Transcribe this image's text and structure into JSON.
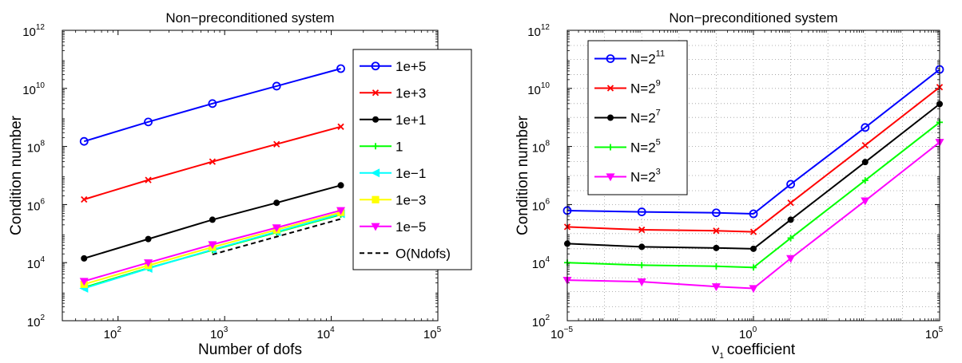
{
  "chart_data": [
    {
      "type": "line",
      "title": "Non−preconditioned system",
      "xlabel": "Number of dofs",
      "ylabel": "Condition number",
      "xscale": "log",
      "yscale": "log",
      "xlim": [
        30,
        100000
      ],
      "ylim": [
        100,
        1000000000000
      ],
      "x_ticks": [
        {
          "base": "10",
          "exp": "2"
        },
        {
          "base": "10",
          "exp": "3"
        },
        {
          "base": "10",
          "exp": "4"
        },
        {
          "base": "10",
          "exp": "5"
        }
      ],
      "y_ticks": [
        {
          "base": "10",
          "exp": "2"
        },
        {
          "base": "10",
          "exp": "4"
        },
        {
          "base": "10",
          "exp": "6"
        },
        {
          "base": "10",
          "exp": "8"
        },
        {
          "base": "10",
          "exp": "10"
        },
        {
          "base": "10",
          "exp": "12"
        }
      ],
      "grid": false,
      "legend_position": "right",
      "series": [
        {
          "name": "1e+5",
          "color": "#0000ff",
          "marker": "circle",
          "x": [
            48,
            192,
            768,
            3072,
            12288
          ],
          "y": [
            150000000,
            700000000,
            3000000000,
            12000000000,
            48000000000
          ]
        },
        {
          "name": "1e+3",
          "color": "#ff0000",
          "marker": "x",
          "x": [
            48,
            192,
            768,
            3072,
            12288
          ],
          "y": [
            1500000,
            7000000,
            30000000,
            120000000,
            480000000
          ]
        },
        {
          "name": "1e+1",
          "color": "#000000",
          "marker": "dot",
          "x": [
            48,
            192,
            768,
            3072,
            12288
          ],
          "y": [
            14000,
            65000,
            300000,
            1150000,
            4600000
          ]
        },
        {
          "name": "1",
          "color": "#00ff00",
          "marker": "plus",
          "x": [
            48,
            192,
            768,
            3072,
            12288
          ],
          "y": [
            1400,
            6500,
            27000,
            110000,
            450000
          ]
        },
        {
          "name": "1e−1",
          "color": "#00ffff",
          "marker": "triangle-left",
          "x": [
            48,
            192,
            768,
            3072,
            12288
          ],
          "y": [
            1300,
            6300,
            28000,
            115000,
            480000
          ]
        },
        {
          "name": "1e−3",
          "color": "#ffff00",
          "marker": "square",
          "x": [
            48,
            192,
            768,
            3072,
            12288
          ],
          "y": [
            1800,
            8000,
            34000,
            135000,
            540000
          ]
        },
        {
          "name": "1e−5",
          "color": "#ff00ff",
          "marker": "triangle-down",
          "x": [
            48,
            192,
            768,
            3072,
            12288
          ],
          "y": [
            2300,
            10000,
            42000,
            160000,
            630000
          ]
        },
        {
          "name": "O(Ndofs)",
          "color": "#000000",
          "marker": "none",
          "dash": true,
          "x": [
            768,
            12288
          ],
          "y": [
            19000,
            320000
          ]
        }
      ]
    },
    {
      "type": "line",
      "title": "Non−preconditioned system",
      "xlabel": "coefficient",
      "xlabel_symbol": "ν",
      "xlabel_sub": "1",
      "ylabel": "Condition number",
      "xscale": "log",
      "yscale": "log",
      "xlim": [
        1e-05,
        100000
      ],
      "ylim": [
        100,
        1000000000000
      ],
      "x_ticks": [
        {
          "base": "10",
          "exp": "−5"
        },
        {
          "base": "10",
          "exp": "0"
        },
        {
          "base": "10",
          "exp": "5"
        }
      ],
      "y_ticks": [
        {
          "base": "10",
          "exp": "2"
        },
        {
          "base": "10",
          "exp": "4"
        },
        {
          "base": "10",
          "exp": "6"
        },
        {
          "base": "10",
          "exp": "8"
        },
        {
          "base": "10",
          "exp": "10"
        },
        {
          "base": "10",
          "exp": "12"
        }
      ],
      "grid": true,
      "legend_position": "top-left",
      "series": [
        {
          "name": "N=2",
          "name_sup": "11",
          "color": "#0000ff",
          "marker": "circle",
          "x": [
            1e-05,
            0.001,
            0.1,
            1,
            10,
            1000,
            100000
          ],
          "y": [
            620000,
            560000,
            520000,
            480000,
            5000000,
            450000000,
            45000000000
          ]
        },
        {
          "name": "N=2",
          "name_sup": "9",
          "color": "#ff0000",
          "marker": "x",
          "x": [
            1e-05,
            0.001,
            0.1,
            1,
            10,
            1000,
            100000
          ],
          "y": [
            170000,
            135000,
            125000,
            115000,
            1150000,
            110000000,
            11000000000
          ]
        },
        {
          "name": "N=2",
          "name_sup": "7",
          "color": "#000000",
          "marker": "dot",
          "x": [
            1e-05,
            0.001,
            0.1,
            1,
            10,
            1000,
            100000
          ],
          "y": [
            45000,
            35000,
            32000,
            30000,
            300000,
            29000000,
            2900000000
          ]
        },
        {
          "name": "N=2",
          "name_sup": "5",
          "color": "#00ff00",
          "marker": "plus",
          "x": [
            1e-05,
            0.001,
            0.1,
            1,
            10,
            1000,
            100000
          ],
          "y": [
            10000,
            8200,
            7500,
            6800,
            70000,
            6800000,
            680000000
          ]
        },
        {
          "name": "N=2",
          "name_sup": "3",
          "color": "#ff00ff",
          "marker": "triangle-down",
          "x": [
            1e-05,
            0.001,
            0.1,
            1,
            10,
            1000,
            100000
          ],
          "y": [
            2500,
            2200,
            1500,
            1300,
            14000,
            1350000,
            140000000
          ]
        }
      ]
    }
  ]
}
